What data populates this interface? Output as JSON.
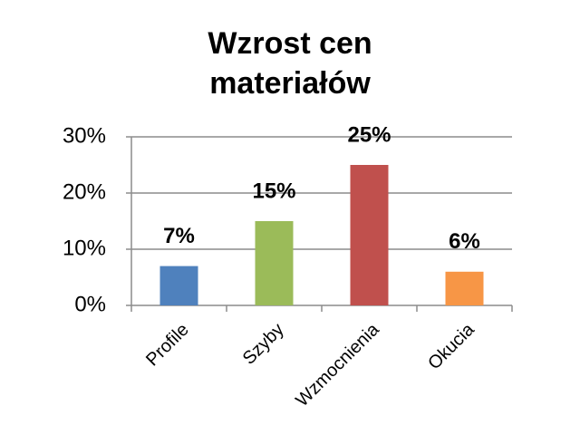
{
  "chart_data": {
    "type": "bar",
    "title": "Wzrost cen materiałów",
    "categories": [
      "Profile",
      "Szyby",
      "Wzmocnienia",
      "Okucia"
    ],
    "values": [
      7,
      15,
      25,
      6
    ],
    "value_labels": [
      "7%",
      "15%",
      "25%",
      "6%"
    ],
    "colors": [
      "#4f81bd",
      "#9bbb59",
      "#c0504d",
      "#f79646"
    ],
    "ylim": [
      0,
      30
    ],
    "yticks": [
      {
        "value": 0,
        "label": "0%"
      },
      {
        "value": 10,
        "label": "10%"
      },
      {
        "value": 20,
        "label": "20%"
      },
      {
        "value": 30,
        "label": "30%"
      }
    ],
    "grid": true
  }
}
